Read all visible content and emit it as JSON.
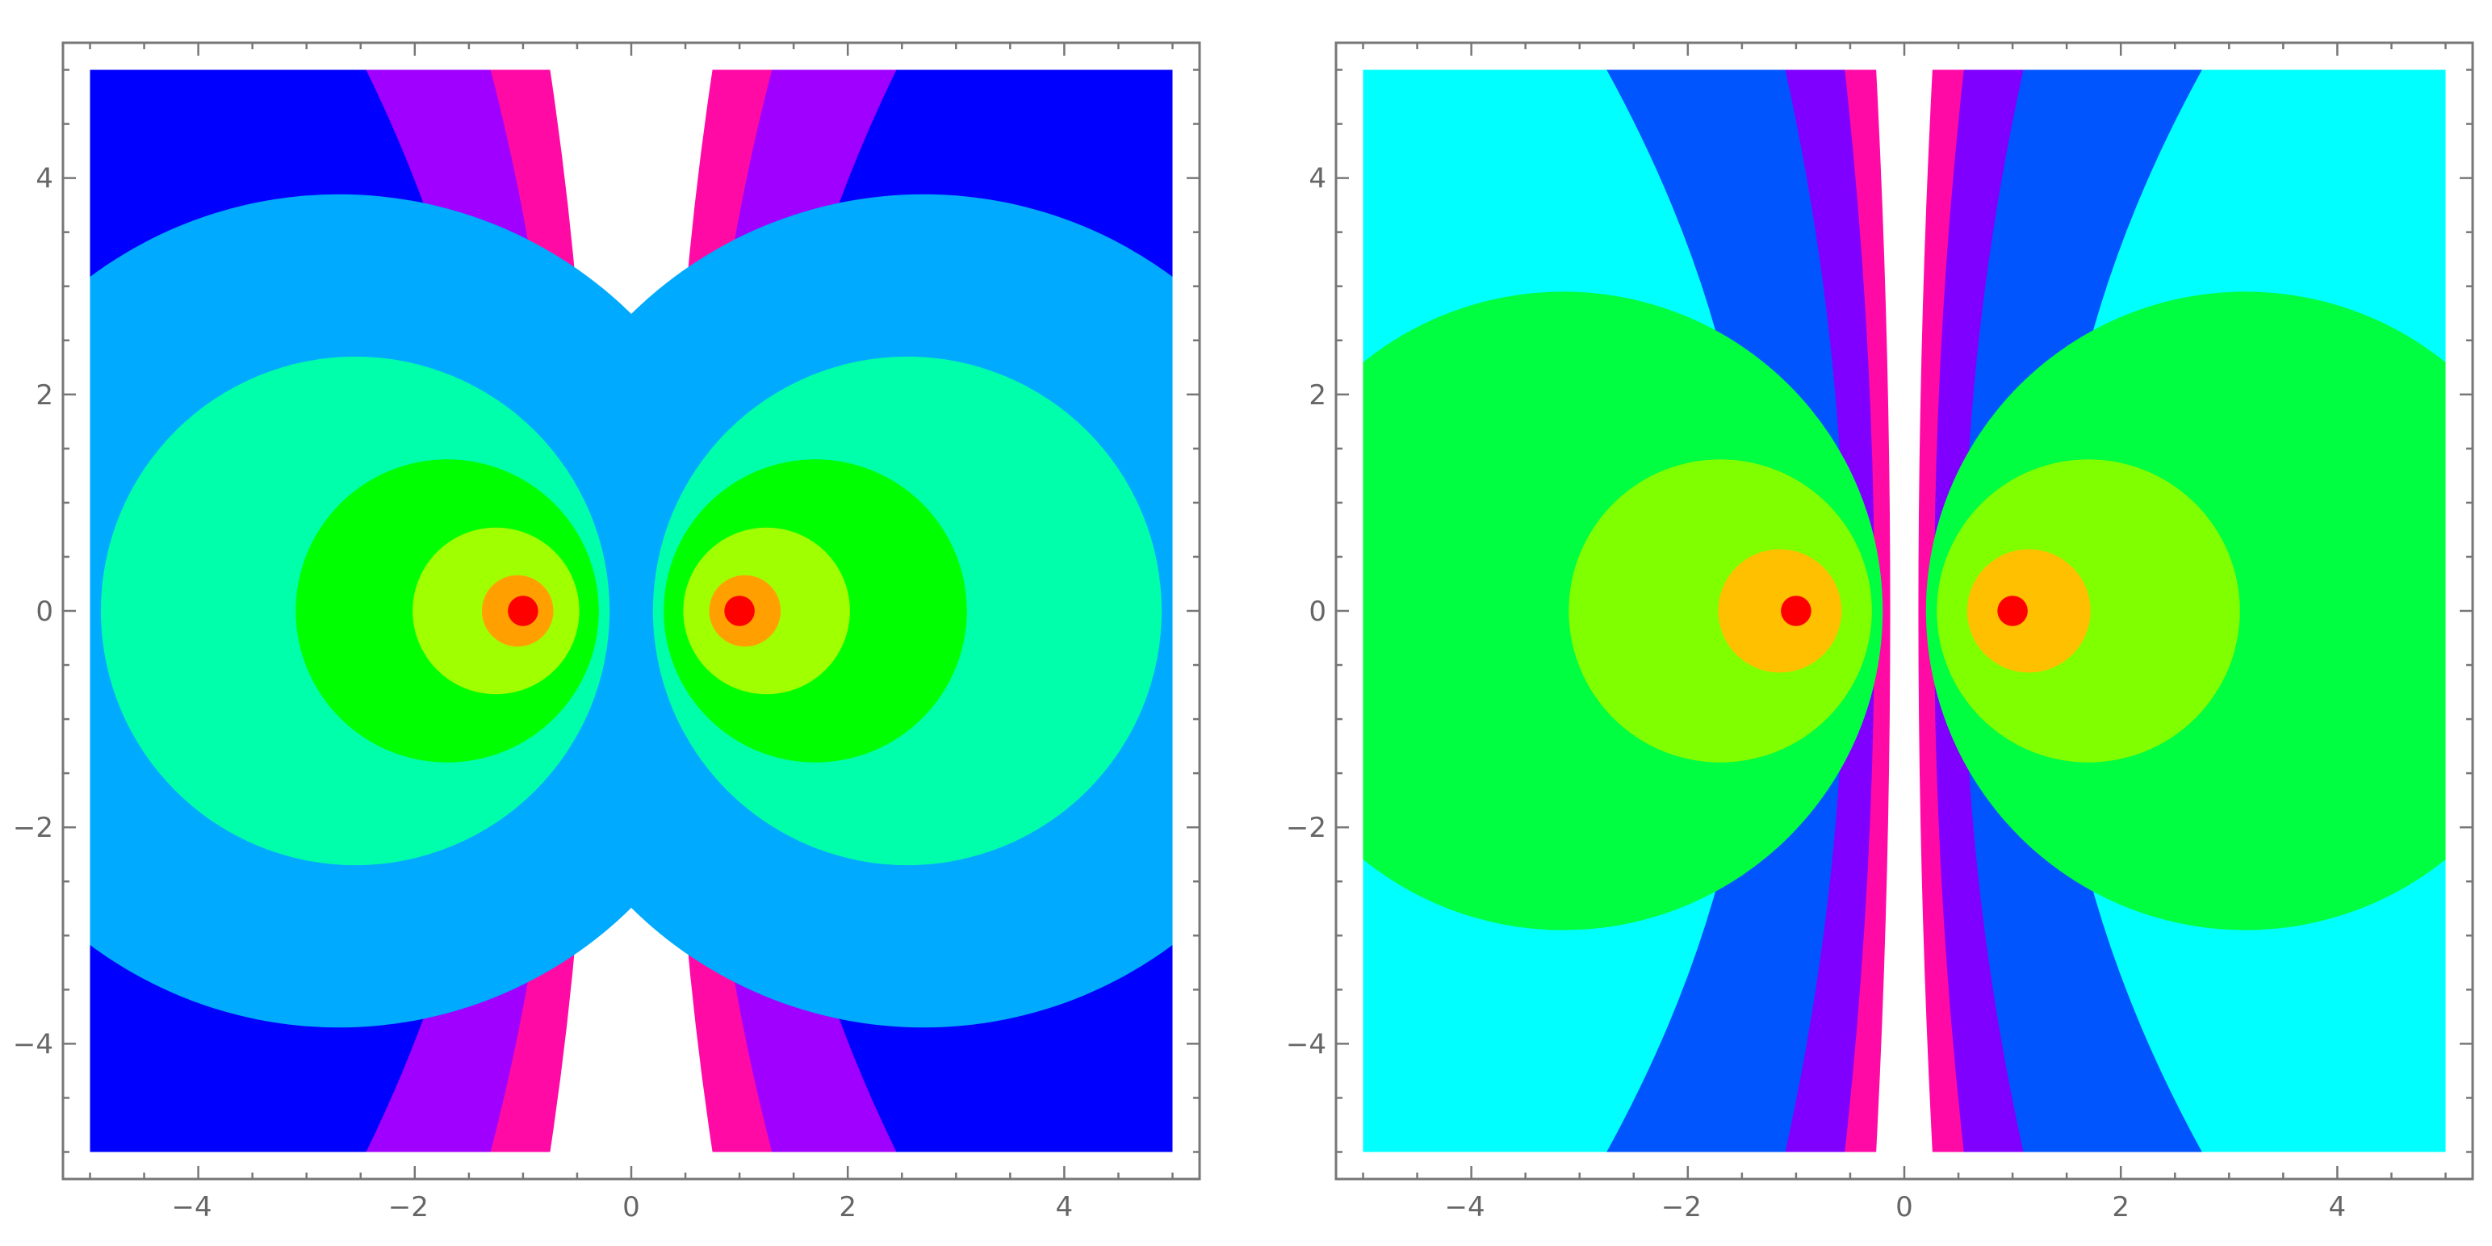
{
  "chart_data": [
    {
      "type": "heatmap",
      "subtype": "contour",
      "title": "",
      "xlabel": "",
      "ylabel": "",
      "xlim": [
        -5.25,
        5.25
      ],
      "ylim": [
        -5.25,
        5.25
      ],
      "data_range_x": [
        -5,
        5
      ],
      "data_range_y": [
        -5,
        5
      ],
      "x_ticks": [
        -4,
        -2,
        0,
        2,
        4
      ],
      "y_ticks": [
        -4,
        -2,
        0,
        2,
        4
      ],
      "tick_labels_x": [
        "−4",
        "−2",
        "0",
        "2",
        "4"
      ],
      "tick_labels_y": [
        "−4",
        "−2",
        "0",
        "2",
        "4"
      ],
      "grid": false,
      "source_points": [
        [
          -1,
          0
        ],
        [
          1,
          0
        ]
      ],
      "background_color": "#0000ff",
      "contour_regions": [
        {
          "shape": "band",
          "level": 1,
          "color": "#a000ff",
          "x_at_top": [
            -2.45,
            2.45
          ],
          "x_at_bottom": [
            -2.45,
            2.45
          ]
        },
        {
          "shape": "band",
          "level": 2,
          "color": "#ff0aa5",
          "x_at_top": [
            -1.3,
            1.3
          ],
          "x_at_bottom": [
            -1.3,
            1.3
          ]
        },
        {
          "shape": "band",
          "level": 3,
          "color": "#ffffff",
          "x_at_top": [
            -0.75,
            0.75
          ],
          "x_at_bottom": [
            -0.75,
            0.75
          ]
        },
        {
          "shape": "circle",
          "level": 4,
          "color": "#00aaff",
          "center": [
            -2.7,
            0
          ],
          "radius": 3.85
        },
        {
          "shape": "circle",
          "level": 4,
          "color": "#00aaff",
          "center": [
            2.7,
            0
          ],
          "radius": 3.85
        },
        {
          "shape": "circle",
          "level": 5,
          "color": "#00ffaa",
          "center": [
            -2.55,
            0
          ],
          "radius": 2.35
        },
        {
          "shape": "circle",
          "level": 5,
          "color": "#00ffaa",
          "center": [
            2.55,
            0
          ],
          "radius": 2.35
        },
        {
          "shape": "circle",
          "level": 6,
          "color": "#00ff00",
          "center": [
            -1.7,
            0
          ],
          "radius": 1.4
        },
        {
          "shape": "circle",
          "level": 6,
          "color": "#00ff00",
          "center": [
            1.7,
            0
          ],
          "radius": 1.4
        },
        {
          "shape": "circle",
          "level": 7,
          "color": "#a0ff00",
          "center": [
            -1.25,
            0
          ],
          "radius": 0.77
        },
        {
          "shape": "circle",
          "level": 7,
          "color": "#a0ff00",
          "center": [
            1.25,
            0
          ],
          "radius": 0.77
        },
        {
          "shape": "circle",
          "level": 8,
          "color": "#ffa000",
          "center": [
            -1.05,
            0
          ],
          "radius": 0.33
        },
        {
          "shape": "circle",
          "level": 8,
          "color": "#ffa000",
          "center": [
            1.05,
            0
          ],
          "radius": 0.33
        },
        {
          "shape": "circle",
          "level": 9,
          "color": "#ff0000",
          "center": [
            -1,
            0
          ],
          "radius": 0.14
        },
        {
          "shape": "circle",
          "level": 9,
          "color": "#ff0000",
          "center": [
            1,
            0
          ],
          "radius": 0.14
        }
      ]
    },
    {
      "type": "heatmap",
      "subtype": "contour",
      "title": "",
      "xlabel": "",
      "ylabel": "",
      "xlim": [
        -5.25,
        5.25
      ],
      "ylim": [
        -5.25,
        5.25
      ],
      "data_range_x": [
        -5,
        5
      ],
      "data_range_y": [
        -5,
        5
      ],
      "x_ticks": [
        -4,
        -2,
        0,
        2,
        4
      ],
      "y_ticks": [
        -4,
        -2,
        0,
        2,
        4
      ],
      "tick_labels_x": [
        "−4",
        "−2",
        "0",
        "2",
        "4"
      ],
      "tick_labels_y": [
        "−4",
        "−2",
        "0",
        "2",
        "4"
      ],
      "grid": false,
      "source_points": [
        [
          -1,
          0
        ],
        [
          1,
          0
        ]
      ],
      "background_color": "#00ffff",
      "contour_regions": [
        {
          "shape": "band",
          "level": 1,
          "color": "#0055ff",
          "x_at_top": [
            -2.75,
            2.75
          ],
          "x_at_bottom": [
            -2.75,
            2.75
          ]
        },
        {
          "shape": "band",
          "level": 2,
          "color": "#8000ff",
          "x_at_top": [
            -1.1,
            1.1
          ],
          "x_at_bottom": [
            -1.1,
            1.1
          ]
        },
        {
          "shape": "band",
          "level": 3,
          "color": "#ff0aa5",
          "x_at_top": [
            -0.55,
            0.55
          ],
          "x_at_bottom": [
            -0.55,
            0.55
          ]
        },
        {
          "shape": "band",
          "level": 4,
          "color": "#ffffff",
          "x_at_top": [
            -0.26,
            0.26
          ],
          "x_at_bottom": [
            -0.26,
            0.26
          ]
        },
        {
          "shape": "circle",
          "level": 5,
          "color": "#00ff40",
          "center": [
            -3.15,
            0
          ],
          "radius": 2.95
        },
        {
          "shape": "circle",
          "level": 5,
          "color": "#00ff40",
          "center": [
            3.15,
            0
          ],
          "radius": 2.95
        },
        {
          "shape": "circle",
          "level": 6,
          "color": "#80ff00",
          "center": [
            -1.7,
            0
          ],
          "radius": 1.4
        },
        {
          "shape": "circle",
          "level": 6,
          "color": "#80ff00",
          "center": [
            1.7,
            0
          ],
          "radius": 1.4
        },
        {
          "shape": "circle",
          "level": 7,
          "color": "#ffc000",
          "center": [
            -1.15,
            0
          ],
          "radius": 0.57
        },
        {
          "shape": "circle",
          "level": 7,
          "color": "#ffc000",
          "center": [
            1.15,
            0
          ],
          "radius": 0.57
        },
        {
          "shape": "circle",
          "level": 8,
          "color": "#ff0000",
          "center": [
            -1,
            0
          ],
          "radius": 0.14
        },
        {
          "shape": "circle",
          "level": 8,
          "color": "#ff0000",
          "center": [
            1,
            0
          ],
          "radius": 0.14
        }
      ]
    }
  ]
}
